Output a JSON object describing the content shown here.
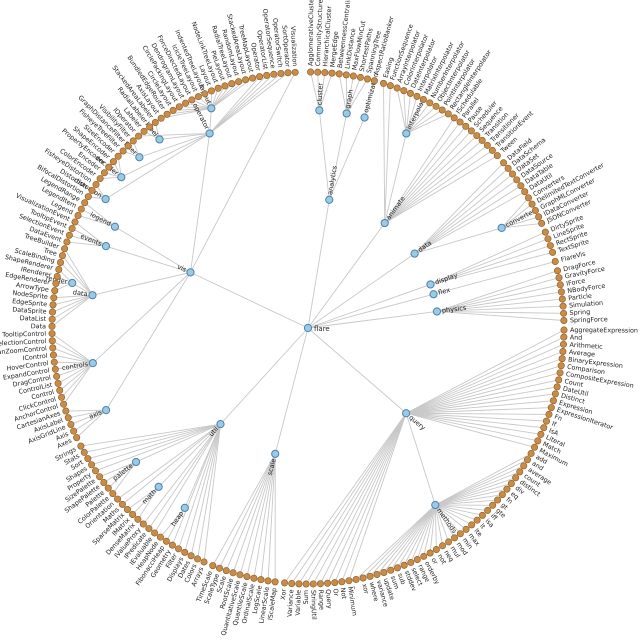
{
  "diagram": {
    "type": "radial-tree",
    "colors": {
      "branch_node": "#9ecae1",
      "branch_stroke": "#4682b4",
      "leaf_node": "#c98c48",
      "edge": "#c8c8c8"
    },
    "root": {
      "name": "flare",
      "children": [
        {
          "name": "analytics",
          "children": [
            {
              "name": "cluster",
              "children": [
                "AgglomerativeCluster",
                "CommunityStructure",
                "HierarchicalCluster",
                "MergeEdge"
              ]
            },
            {
              "name": "graph",
              "children": [
                "BetweennessCentrality",
                "LinkDistance",
                "MaxFlowMinCut",
                "ShortestPaths",
                "SpanningTree"
              ]
            },
            {
              "name": "optimization",
              "children": [
                "AspectRatioBanker"
              ]
            }
          ]
        },
        {
          "name": "animate",
          "children": [
            "Easing",
            "FunctionSequence",
            {
              "name": "interpolate",
              "children": [
                "ArrayInterpolator",
                "ColorInterpolator",
                "DateInterpolator",
                "Interpolator",
                "MatrixInterpolator",
                "NumberInterpolator",
                "ObjectInterpolator",
                "PointInterpolator",
                "RectangleInterpolator"
              ]
            },
            "ISchedulable",
            "Parallel",
            "Pause",
            "Scheduler",
            "Sequence",
            "Transition",
            "Transitioner",
            "TransitionEvent",
            "Tween"
          ]
        },
        {
          "name": "data",
          "children": [
            "DataField",
            "DataSchema",
            "DataSet",
            "DataSource",
            "DataTable",
            "DataUtil",
            {
              "name": "converters",
              "children": [
                "Converters",
                "DelimitedTextConverter",
                "GraphMLConverter",
                "IDataConverter",
                "JSONConverter"
              ]
            }
          ]
        },
        {
          "name": "display",
          "children": [
            "DirtySprite",
            "LineSprite",
            "RectSprite",
            "TextSprite"
          ]
        },
        {
          "name": "flex",
          "children": [
            "FlareVis"
          ]
        },
        {
          "name": "physics",
          "children": [
            "DragForce",
            "GravityForce",
            "IForce",
            "NBodyForce",
            "Particle",
            "Simulation",
            "Spring",
            "SpringForce"
          ]
        },
        {
          "name": "query",
          "children": [
            "AggregateExpression",
            "And",
            "Arithmetic",
            "Average",
            "BinaryExpression",
            "Comparison",
            "CompositeExpression",
            "Count",
            "DateUtil",
            "Distinct",
            "Expression",
            "ExpressionIterator",
            "Fn",
            "If",
            "IsA",
            "Literal",
            "Match",
            "Maximum",
            {
              "name": "methods",
              "children": [
                "add",
                "and",
                "average",
                "count",
                "distinct",
                "div",
                "eq",
                "fn",
                "gt",
                "gte",
                "iff",
                "isa",
                "lt",
                "lte",
                "max",
                "min",
                "mod",
                "mul",
                "neq",
                "not",
                "or",
                "orderby",
                "range",
                "select",
                "stddev",
                "sub",
                "sum",
                "update",
                "variance",
                "where",
                "xor",
                "_"
              ]
            },
            "Minimum",
            "Not",
            "Or",
            "Query",
            "Range",
            "StringUtil",
            "Sum",
            "Variable",
            "Variance",
            "Xor"
          ]
        },
        {
          "name": "scale",
          "children": [
            "IScaleMap",
            "LinearScale",
            "LogScale",
            "OrdinalScale",
            "QuantileScale",
            "QuantitativeScale",
            "RootScale",
            "Scale",
            "ScaleType",
            "TimeScale"
          ]
        },
        {
          "name": "util",
          "children": [
            "Arrays",
            "Colors",
            "Dates",
            "Displays",
            "Filter",
            "Geometry",
            {
              "name": "heap",
              "children": [
                "FibonacciHeap",
                "HeapNode"
              ]
            },
            "IEvaluable",
            "IPredicate",
            "IValueProxy",
            {
              "name": "math",
              "children": [
                "DenseMatrix",
                "IMatrix",
                "SparseMatrix"
              ]
            },
            "Maths",
            "Orientation",
            {
              "name": "palette",
              "children": [
                "ColorPalette",
                "Palette",
                "ShapePalette",
                "SizePalette"
              ]
            },
            "Property",
            "Shapes",
            "Sort",
            "Stats",
            "Strings"
          ]
        },
        {
          "name": "vis",
          "children": [
            {
              "name": "axis",
              "children": [
                "Axes",
                "Axis",
                "AxisGridLine",
                "AxisLabel",
                "CartesianAxes"
              ]
            },
            {
              "name": "controls",
              "children": [
                "AnchorControl",
                "ClickControl",
                "Control",
                "ControlList",
                "DragControl",
                "ExpandControl",
                "HoverControl",
                "IControl",
                "PanZoomControl",
                "SelectionControl",
                "TooltipControl"
              ]
            },
            {
              "name": "data",
              "children": [
                "Data",
                "DataList",
                "DataSprite",
                "EdgeSprite",
                "NodeSprite",
                {
                  "name": "render",
                  "children": [
                    "ArrowType",
                    "EdgeRenderer",
                    "IRenderer",
                    "ShapeRenderer"
                  ]
                },
                "ScaleBinding",
                "Tree",
                "TreeBuilder"
              ]
            },
            {
              "name": "events",
              "children": [
                "DataEvent",
                "SelectionEvent",
                "TooltipEvent",
                "VisualizationEvent"
              ]
            },
            {
              "name": "legend",
              "children": [
                "Legend",
                "LegendItem",
                "LegendRange"
              ]
            },
            {
              "name": "operator",
              "children": [
                {
                  "name": "distortion",
                  "children": [
                    "BifocalDistortion",
                    "Distortion",
                    "FisheyeDistortion"
                  ]
                },
                {
                  "name": "encoder",
                  "children": [
                    "ColorEncoder",
                    "Encoder",
                    "PropertyEncoder",
                    "ShapeEncoder",
                    "SizeEncoder"
                  ]
                },
                {
                  "name": "filter",
                  "children": [
                    "FisheyeTreeFilter",
                    "GraphDistanceFilter",
                    "VisibilityFilter"
                  ]
                },
                "IOperator",
                {
                  "name": "label",
                  "children": [
                    "Labeler",
                    "RadialLabeler",
                    "StackedAreaLabeler"
                  ]
                },
                {
                  "name": "layout",
                  "children": [
                    "AxisLayout",
                    "BundledEdgeRouter",
                    "CircleLayout",
                    "CirclePackingLayout",
                    "DendrogramLayout",
                    "ForceDirectedLayout",
                    "IcicleTreeLayout",
                    "IndentedTreeLayout",
                    "Layout",
                    "NodeLinkTreeLayout",
                    "PieLayout",
                    "RadialTreeLayout",
                    "RandomLayout",
                    "StackedAreaLayout",
                    "TreeMapLayout"
                  ]
                },
                "Operator",
                "OperatorList",
                "OperatorSequence",
                "OperatorSwitch",
                "SortOperator"
              ]
            },
            "Visualization"
          ]
        }
      ]
    }
  }
}
